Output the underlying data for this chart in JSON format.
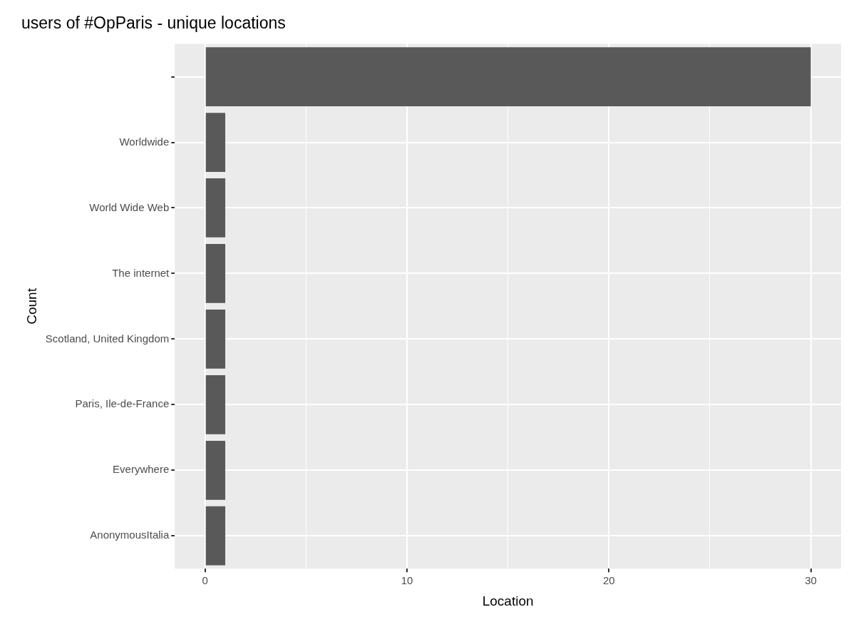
{
  "chart_data": {
    "type": "bar",
    "orientation": "horizontal",
    "title": "users of #OpParis - unique locations",
    "xlabel": "Location",
    "ylabel": "Count",
    "categories": [
      null,
      "Worldwide",
      "World Wide Web",
      "The internet",
      "Scotland, United Kingdom",
      "Paris, Ile-de-France",
      "Everywhere",
      "AnonymousItalia"
    ],
    "values": [
      30,
      1,
      1,
      1,
      1,
      1,
      1,
      1
    ],
    "color": "#595959",
    "xlim": [
      -1.5,
      31.5
    ],
    "xticks": [
      0,
      {
        "value": 5,
        "label": null
      },
      10,
      {
        "value": 15,
        "label": null
      },
      20,
      {
        "value": 25,
        "label": null
      },
      30
    ],
    "grid": true,
    "legend": false
  }
}
